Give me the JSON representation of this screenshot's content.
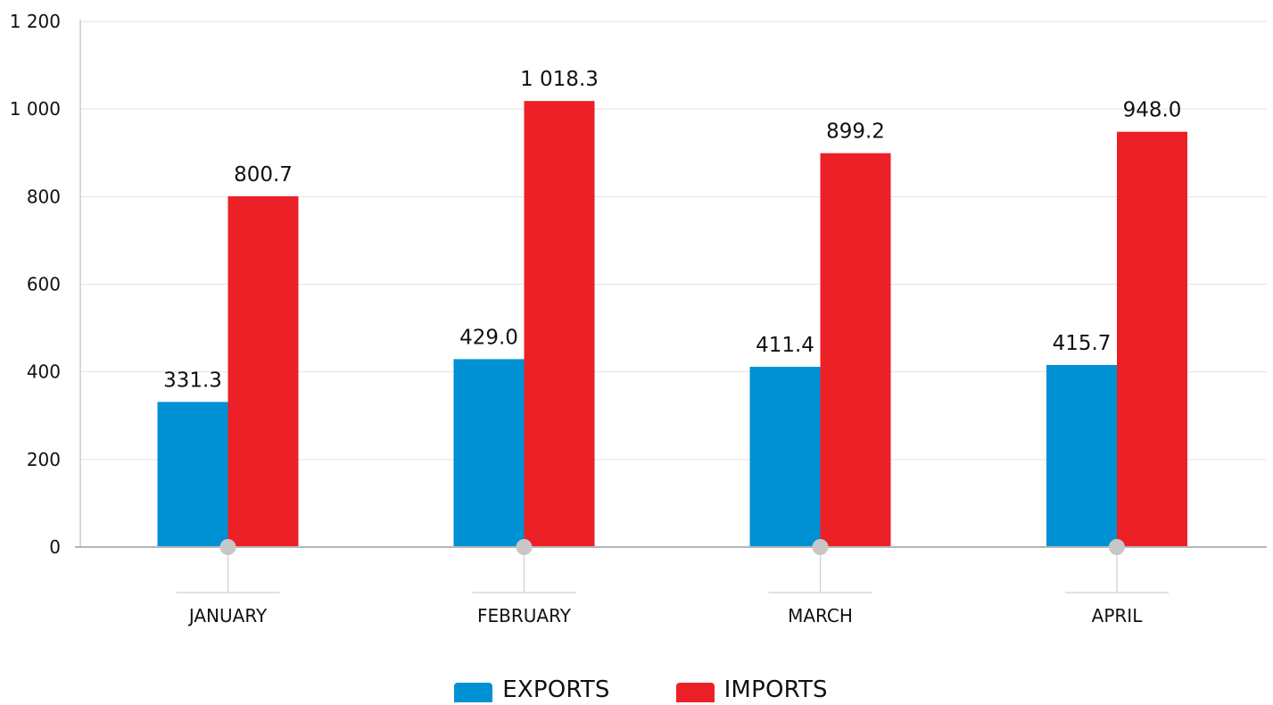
{
  "chart_data": {
    "type": "bar",
    "title": "",
    "xlabel": "",
    "ylabel": "",
    "ylim": [
      0,
      1200
    ],
    "yticks": [
      0,
      200,
      400,
      600,
      800,
      1000,
      1200
    ],
    "ytick_labels": [
      "0",
      "200",
      "400",
      "600",
      "800",
      "1 000",
      "1 200"
    ],
    "grid": true,
    "legend_position": "bottom",
    "categories": [
      "JANUARY",
      "FEBRUARY",
      "MARCH",
      "APRIL"
    ],
    "series": [
      {
        "name": "EXPORTS",
        "color": "#0091d5",
        "values": [
          331.3,
          429.0,
          411.4,
          415.7
        ],
        "labels": [
          "331.3",
          "429.0",
          "411.4",
          "415.7"
        ]
      },
      {
        "name": "IMPORTS",
        "color": "#ec2027",
        "values": [
          800.7,
          1018.3,
          899.2,
          948.0
        ],
        "labels": [
          "800.7",
          "1 018.3",
          "899.2",
          "948.0"
        ]
      }
    ]
  }
}
